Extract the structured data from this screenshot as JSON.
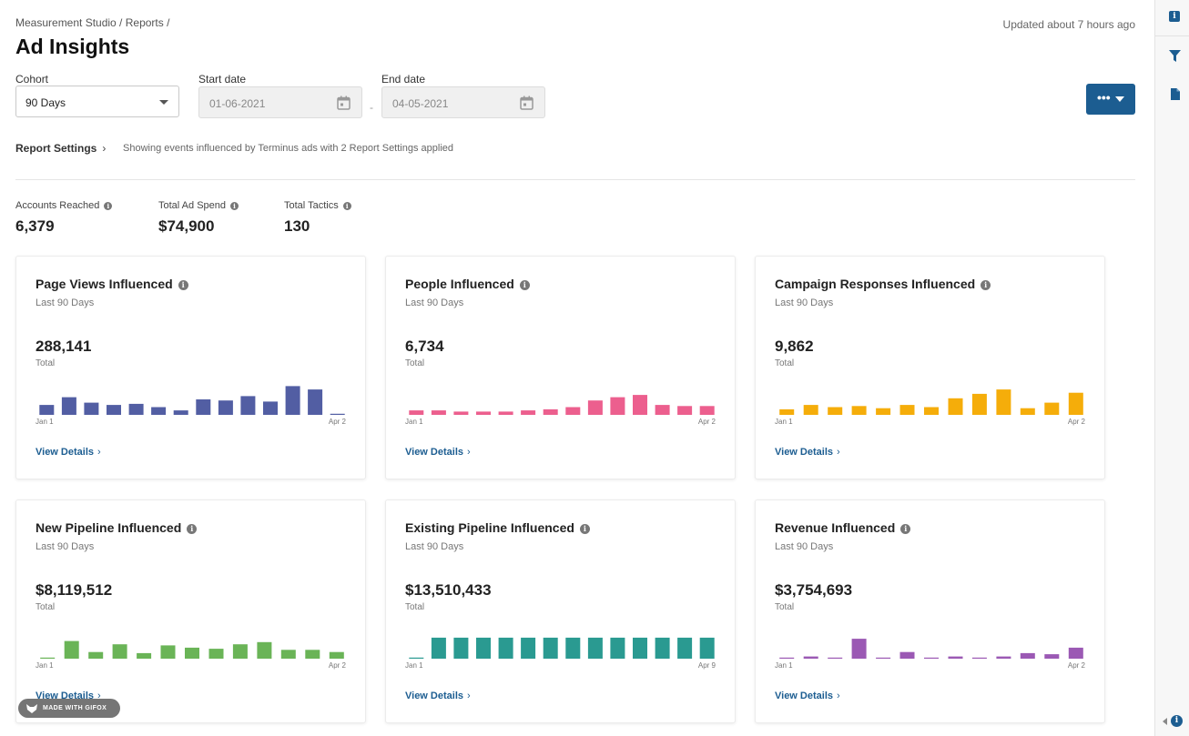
{
  "breadcrumb": "Measurement Studio / Reports /",
  "updated": "Updated about 7 hours ago",
  "page_title": "Ad Insights",
  "filters": {
    "cohort_label": "Cohort",
    "cohort_value": "90 Days",
    "start_label": "Start date",
    "start_value": "01-06-2021",
    "end_label": "End date",
    "end_value": "04-05-2021",
    "separator": "-"
  },
  "more_button": "•••",
  "report_settings": {
    "label": "Report Settings",
    "chevron": "›",
    "description": "Showing events influenced by Terminus ads with 2 Report Settings applied"
  },
  "stats": [
    {
      "label": "Accounts Reached",
      "value": "6,379"
    },
    {
      "label": "Total Ad Spend",
      "value": "$74,900"
    },
    {
      "label": "Total Tactics",
      "value": "130"
    }
  ],
  "cards": [
    {
      "title": "Page Views Influenced",
      "subtitle": "Last 90 Days",
      "value": "288,141",
      "total_label": "Total",
      "x_start": "Jan 1",
      "x_end": "Apr 2",
      "details": "View Details",
      "color": "#525ea3",
      "bars": [
        9,
        16,
        11,
        9,
        10,
        7,
        4,
        14,
        13,
        17,
        12,
        26,
        23,
        1
      ]
    },
    {
      "title": "People Influenced",
      "subtitle": "Last 90 Days",
      "value": "6,734",
      "total_label": "Total",
      "x_start": "Jan 1",
      "x_end": "Apr 2",
      "details": "View Details",
      "color": "#ec5f8e",
      "bars": [
        4,
        4,
        3,
        3,
        3,
        4,
        5,
        7,
        13,
        16,
        18,
        9,
        8,
        8
      ]
    },
    {
      "title": "Campaign Responses Influenced",
      "subtitle": "Last 90 Days",
      "value": "9,862",
      "total_label": "Total",
      "x_start": "Jan 1",
      "x_end": "Apr 2",
      "details": "View Details",
      "color": "#f5ad0a",
      "bars": [
        5,
        9,
        7,
        8,
        6,
        9,
        7,
        15,
        19,
        23,
        6,
        11,
        20
      ]
    },
    {
      "title": "New Pipeline Influenced",
      "subtitle": "Last 90 Days",
      "value": "$8,119,512",
      "total_label": "Total",
      "x_start": "Jan 1",
      "x_end": "Apr 2",
      "details": "View Details",
      "color": "#6ab457",
      "bars": [
        1,
        16,
        6,
        13,
        5,
        12,
        10,
        9,
        13,
        15,
        8,
        8,
        6
      ]
    },
    {
      "title": "Existing Pipeline Influenced",
      "subtitle": "Last 90 Days",
      "value": "$13,510,433",
      "total_label": "Total",
      "x_start": "Jan 1",
      "x_end": "Apr 9",
      "details": "View Details",
      "color": "#2a9a91",
      "bars": [
        0,
        19,
        19,
        19,
        19,
        19,
        19,
        19,
        19,
        19,
        19,
        19,
        19,
        19
      ]
    },
    {
      "title": "Revenue Influenced",
      "subtitle": "Last 90 Days",
      "value": "$3,754,693",
      "total_label": "Total",
      "x_start": "Jan 1",
      "x_end": "Apr 2",
      "details": "View Details",
      "color": "#9b59b4",
      "bars": [
        1,
        2,
        1,
        18,
        1,
        6,
        1,
        2,
        1,
        2,
        5,
        4,
        10
      ]
    }
  ],
  "details_chevron": "›",
  "watermark": "MADE WITH GIFOX",
  "icons": {
    "info": "info-icon",
    "calendar": "calendar-icon",
    "filter": "filter-icon",
    "document": "document-icon"
  }
}
